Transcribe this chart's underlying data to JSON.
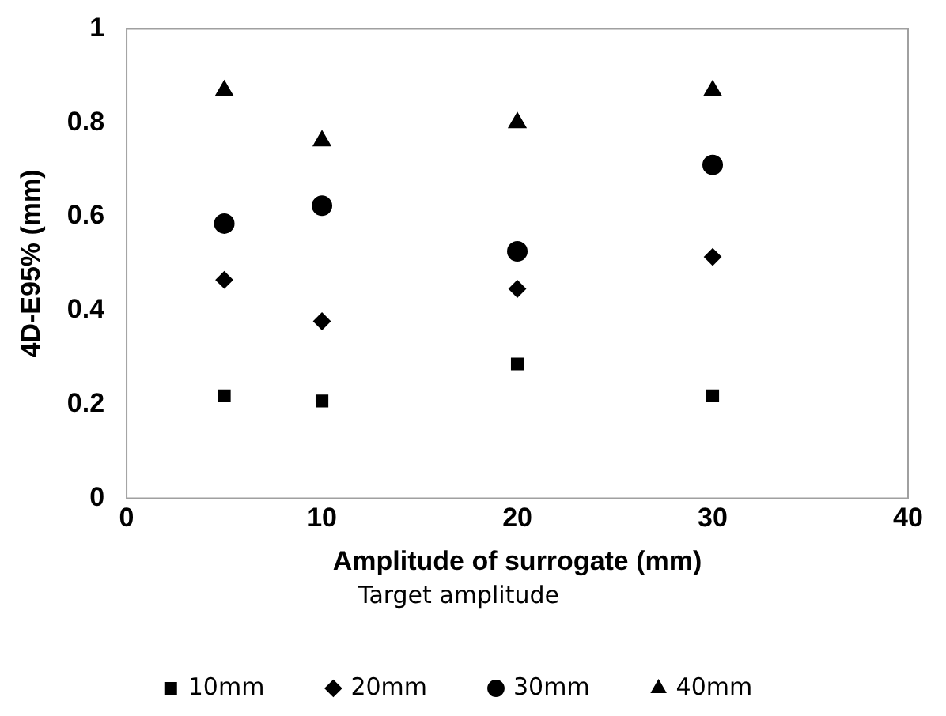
{
  "chart_data": {
    "type": "scatter",
    "xlabel": "Amplitude of surrogate (mm)",
    "ylabel": "4D-E95% (mm)",
    "legend_title": "Target amplitude",
    "legend": "bottom",
    "grid": false,
    "xlim": [
      0,
      40
    ],
    "xticks": [
      0,
      10,
      20,
      30,
      40
    ],
    "ylim": [
      0,
      1
    ],
    "yticks": [
      0,
      0.2,
      0.4,
      0.6,
      0.8,
      1
    ],
    "series": [
      {
        "name": "10mm",
        "color": "#000000",
        "marker": "square",
        "x": [
          5,
          10,
          20,
          30
        ],
        "values": [
          0.218,
          0.207,
          0.286,
          0.218
        ]
      },
      {
        "name": "20mm",
        "color": "#000000",
        "marker": "diamond",
        "x": [
          5,
          10,
          20,
          30
        ],
        "values": [
          0.465,
          0.377,
          0.446,
          0.514
        ]
      },
      {
        "name": "30mm",
        "color": "#000000",
        "marker": "circle",
        "x": [
          5,
          10,
          20,
          30
        ],
        "values": [
          0.585,
          0.623,
          0.526,
          0.71
        ]
      },
      {
        "name": "40mm",
        "color": "#000000",
        "marker": "triangle",
        "x": [
          5,
          10,
          20,
          30
        ],
        "values": [
          0.868,
          0.761,
          0.8,
          0.868
        ]
      }
    ]
  }
}
